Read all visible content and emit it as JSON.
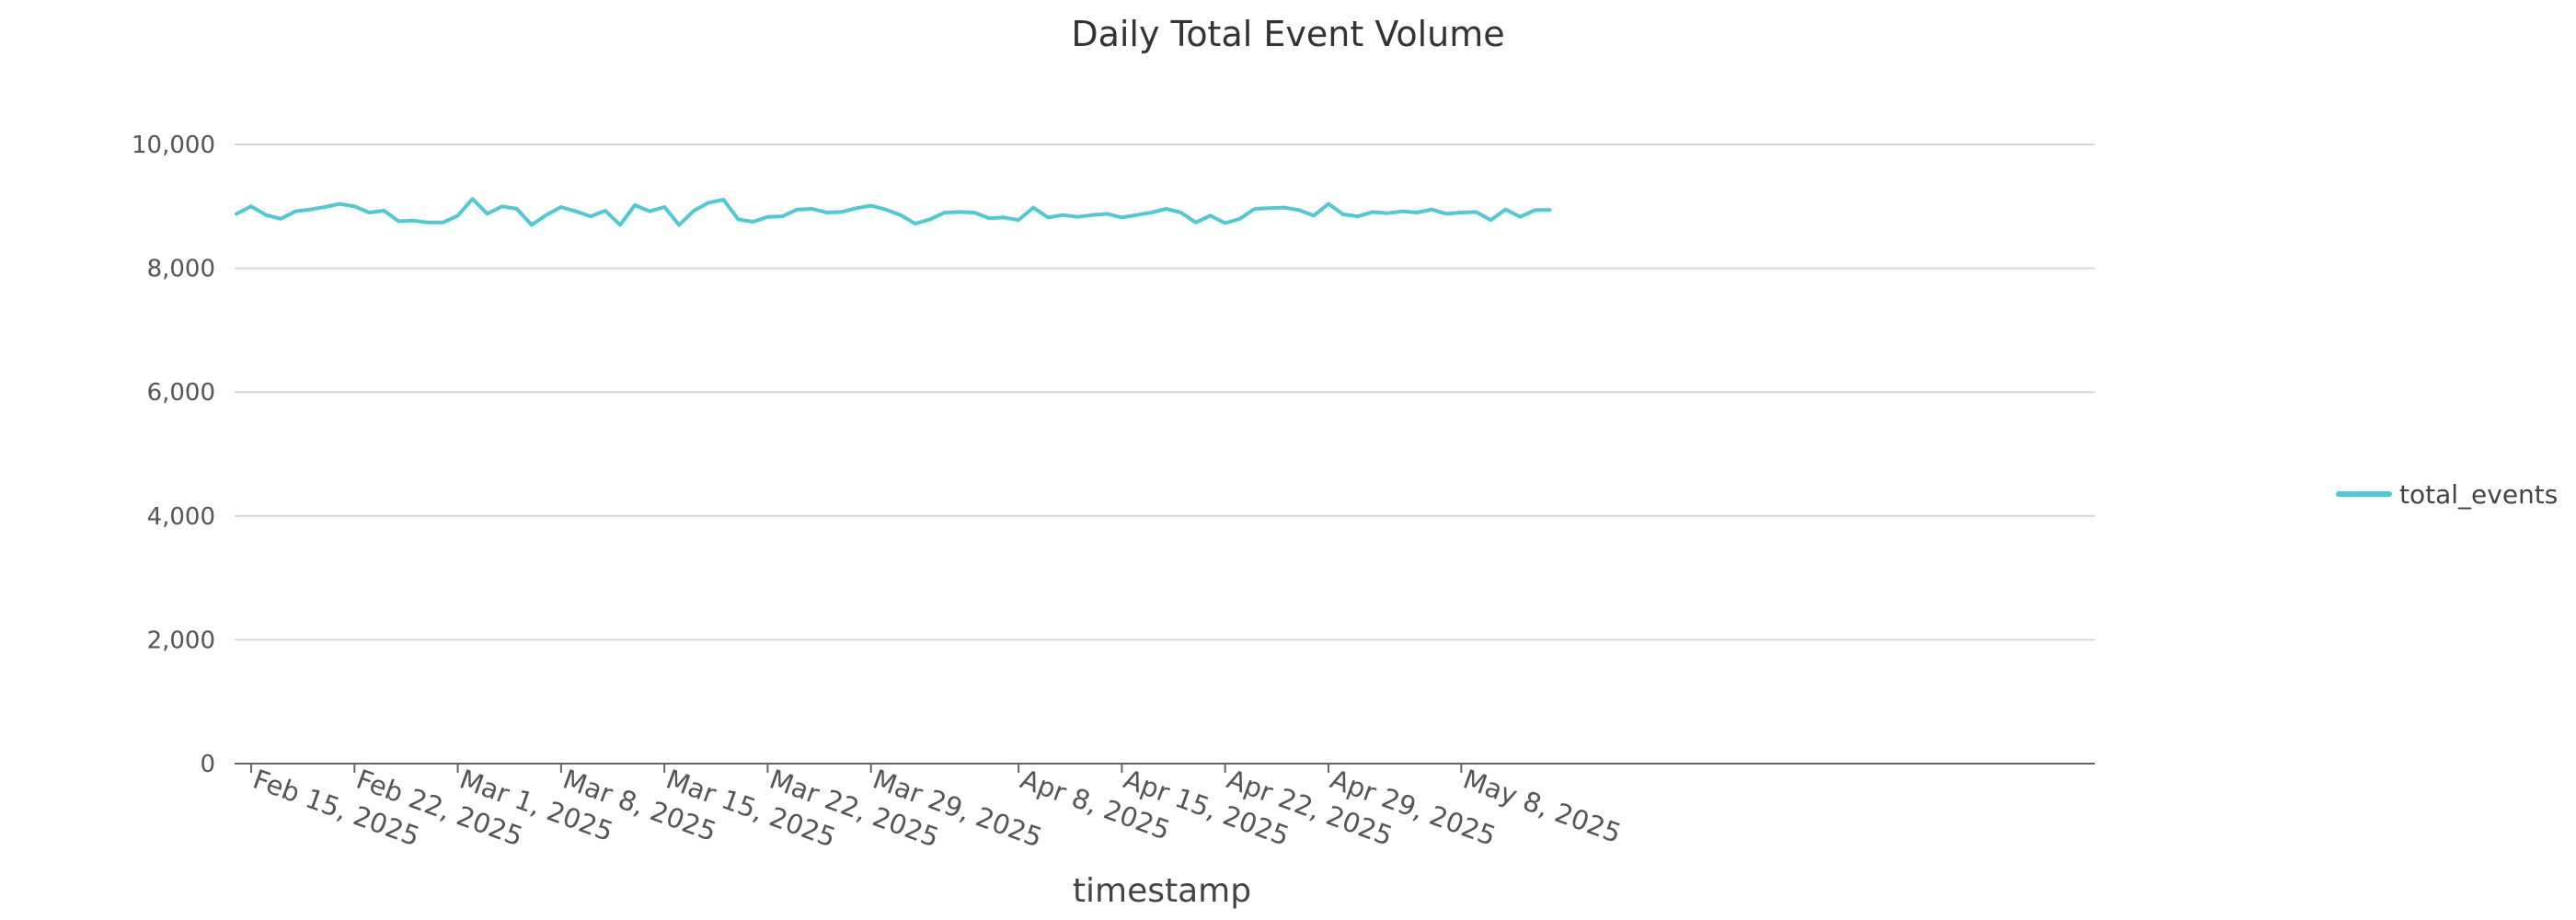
{
  "chart_data": {
    "type": "line",
    "title": "Daily Total Event Volume",
    "xlabel": "timestamp",
    "ylabel": "",
    "ylim": [
      0,
      10000
    ],
    "y_ticks": [
      0,
      2000,
      4000,
      6000,
      8000,
      10000
    ],
    "y_tick_labels": [
      "0",
      "2,000",
      "4,000",
      "6,000",
      "8,000",
      "10,000"
    ],
    "x_tick_labels": [
      {
        "date": "2025-02-15",
        "label": "Feb 15, 2025"
      },
      {
        "date": "2025-02-22",
        "label": "Feb 22, 2025"
      },
      {
        "date": "2025-03-01",
        "label": "Mar 1, 2025"
      },
      {
        "date": "2025-03-08",
        "label": "Mar 8, 2025"
      },
      {
        "date": "2025-03-15",
        "label": "Mar 15, 2025"
      },
      {
        "date": "2025-03-22",
        "label": "Mar 22, 2025"
      },
      {
        "date": "2025-03-29",
        "label": "Mar 29, 2025"
      },
      {
        "date": "2025-04-08",
        "label": "Apr 8, 2025"
      },
      {
        "date": "2025-04-15",
        "label": "Apr 15, 2025"
      },
      {
        "date": "2025-04-22",
        "label": "Apr 22, 2025"
      },
      {
        "date": "2025-04-29",
        "label": "Apr 29, 2025"
      },
      {
        "date": "2025-05-08",
        "label": "May 8, 2025"
      }
    ],
    "grid": true,
    "legend_position": "right",
    "series": [
      {
        "name": "total_events",
        "color": "#4fc9d2",
        "x_start": "2025-02-14",
        "values": [
          8880,
          9000,
          8860,
          8800,
          8920,
          8950,
          8990,
          9040,
          9000,
          8900,
          8930,
          8760,
          8770,
          8740,
          8740,
          8850,
          9120,
          8880,
          9000,
          8960,
          8700,
          8860,
          8990,
          8920,
          8840,
          8930,
          8700,
          9020,
          8920,
          8990,
          8700,
          8930,
          9060,
          9110,
          8790,
          8750,
          8830,
          8840,
          8950,
          8960,
          8900,
          8910,
          8970,
          9010,
          8950,
          8860,
          8720,
          8790,
          8900,
          8910,
          8900,
          8810,
          8820,
          8780,
          8980,
          8820,
          8860,
          8830,
          8860,
          8880,
          8820,
          8860,
          8900,
          8960,
          8900,
          8740,
          8850,
          8730,
          8800,
          8960,
          8970,
          8980,
          8940,
          8850,
          9040,
          8870,
          8840,
          8910,
          8890,
          8920,
          8900,
          8950,
          8880,
          8900,
          8910,
          8780,
          8950,
          8830,
          8940,
          8940
        ]
      }
    ]
  }
}
